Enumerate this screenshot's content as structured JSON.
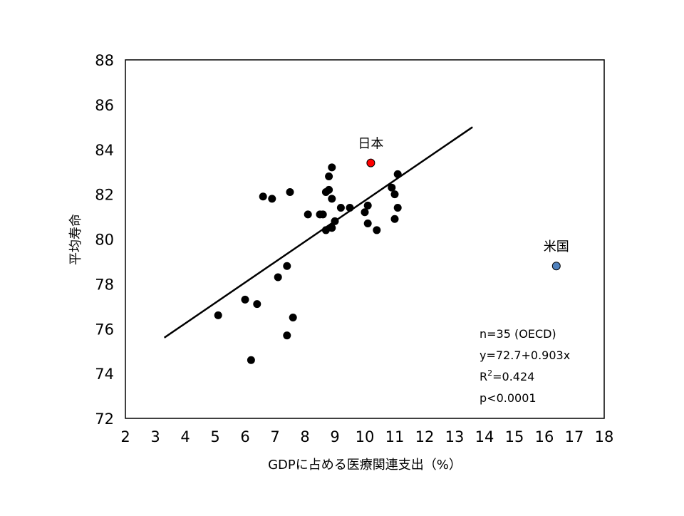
{
  "chart_data": {
    "type": "scatter",
    "title": "",
    "xlabel": "GDPに占める医療関連支出（%）",
    "ylabel": "平均寿命",
    "xlim": [
      2,
      18
    ],
    "ylim": [
      72,
      88
    ],
    "xticks": [
      2,
      3,
      4,
      5,
      6,
      7,
      8,
      9,
      10,
      11,
      12,
      13,
      14,
      15,
      16,
      17,
      18
    ],
    "yticks": [
      72,
      74,
      76,
      78,
      80,
      82,
      84,
      86,
      88
    ],
    "grid": false,
    "legend": "none",
    "colors": {
      "default_point": "#000000",
      "japan_point": "#ff0000",
      "usa_point": "#4f81bd",
      "trendline": "#000000"
    },
    "series": [
      {
        "points": [
          {
            "x": 5.1,
            "y": 76.6
          },
          {
            "x": 6.0,
            "y": 77.3
          },
          {
            "x": 6.2,
            "y": 74.6
          },
          {
            "x": 6.4,
            "y": 77.1
          },
          {
            "x": 6.6,
            "y": 81.9
          },
          {
            "x": 6.9,
            "y": 81.8
          },
          {
            "x": 7.1,
            "y": 78.3
          },
          {
            "x": 7.4,
            "y": 78.8
          },
          {
            "x": 7.4,
            "y": 75.7
          },
          {
            "x": 7.5,
            "y": 82.1
          },
          {
            "x": 7.6,
            "y": 76.5
          },
          {
            "x": 8.1,
            "y": 81.1
          },
          {
            "x": 8.5,
            "y": 81.1
          },
          {
            "x": 8.6,
            "y": 81.1
          },
          {
            "x": 8.7,
            "y": 80.4
          },
          {
            "x": 8.7,
            "y": 82.1
          },
          {
            "x": 8.8,
            "y": 82.2
          },
          {
            "x": 8.8,
            "y": 82.8
          },
          {
            "x": 8.9,
            "y": 83.2
          },
          {
            "x": 8.9,
            "y": 81.8
          },
          {
            "x": 8.9,
            "y": 80.5
          },
          {
            "x": 9.0,
            "y": 80.8
          },
          {
            "x": 9.2,
            "y": 81.4
          },
          {
            "x": 9.5,
            "y": 81.4
          },
          {
            "x": 10.0,
            "y": 81.2
          },
          {
            "x": 10.1,
            "y": 81.5
          },
          {
            "x": 10.1,
            "y": 80.7
          },
          {
            "x": 10.4,
            "y": 80.4
          },
          {
            "x": 10.9,
            "y": 82.3
          },
          {
            "x": 11.0,
            "y": 82.0
          },
          {
            "x": 11.0,
            "y": 80.9
          },
          {
            "x": 11.1,
            "y": 82.9
          },
          {
            "x": 11.1,
            "y": 81.4
          }
        ]
      }
    ],
    "highlighted_points": [
      {
        "label": "日本",
        "x": 10.2,
        "y": 83.4,
        "color": "#ff0000"
      },
      {
        "label": "米国",
        "x": 16.4,
        "y": 78.8,
        "color": "#4f81bd"
      }
    ],
    "trendline": {
      "x_start": 3.3,
      "x_end": 13.6,
      "y_start": 75.6,
      "y_end": 85.0
    },
    "annotations": [
      "n=35 (OECD)",
      "y=72.7+0.903x",
      "R2=0.424",
      "p<0.0001"
    ],
    "r2_parts": {
      "prefix": "R",
      "sup": "2",
      "suffix": "=0.424"
    }
  }
}
